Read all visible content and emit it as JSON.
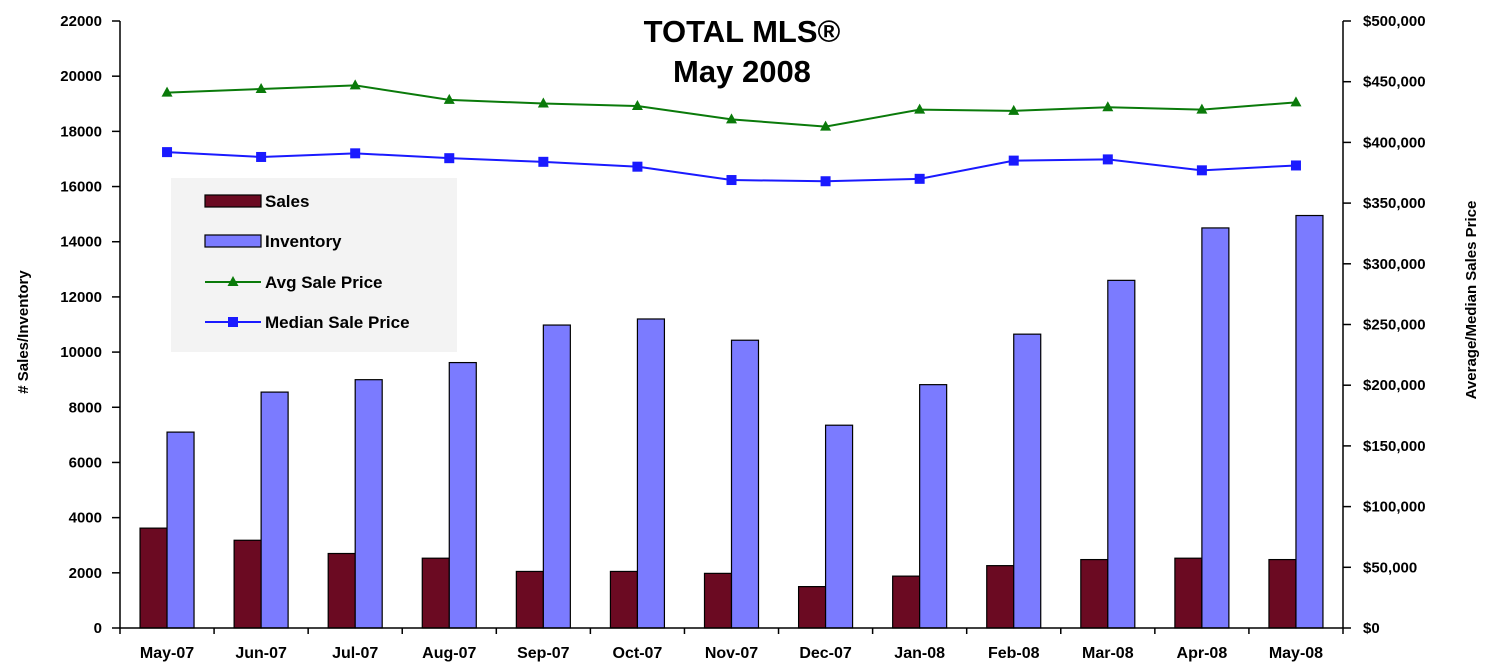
{
  "chart_data": {
    "type": "bar",
    "title": "TOTAL MLS®",
    "subtitle": "May 2008",
    "ylabel": "# Sales/Inventory",
    "y2label": "Average/Median Sales Price",
    "ylim": [
      0,
      22000
    ],
    "y2lim": [
      0,
      500000
    ],
    "yticks": [
      "0",
      "2000",
      "4000",
      "6000",
      "8000",
      "10000",
      "12000",
      "14000",
      "16000",
      "18000",
      "20000",
      "22000"
    ],
    "y2ticks": [
      "$0",
      "$50,000",
      "$100,000",
      "$150,000",
      "$200,000",
      "$250,000",
      "$300,000",
      "$350,000",
      "$400,000",
      "$450,000",
      "$500,000"
    ],
    "categories": [
      "May-07",
      "Jun-07",
      "Jul-07",
      "Aug-07",
      "Sep-07",
      "Oct-07",
      "Nov-07",
      "Dec-07",
      "Jan-08",
      "Feb-08",
      "Mar-08",
      "Apr-08",
      "May-08"
    ],
    "legend_position": "upper-left",
    "series": [
      {
        "name": "Sales",
        "kind": "bar",
        "axis": "left",
        "color": "#6b0a22",
        "values": [
          3620,
          3180,
          2700,
          2530,
          2050,
          2050,
          1980,
          1500,
          1880,
          2260,
          2480,
          2530,
          2480
        ]
      },
      {
        "name": "Inventory",
        "kind": "bar",
        "axis": "left",
        "color": "#7b7bff",
        "values": [
          7100,
          8550,
          9000,
          9620,
          10980,
          11200,
          10430,
          7350,
          8820,
          10650,
          12600,
          14500,
          14950
        ]
      },
      {
        "name": "Avg Sale Price",
        "kind": "line",
        "axis": "right",
        "color": "#0a7a0a",
        "marker": "triangle",
        "values": [
          441000,
          444000,
          447000,
          435000,
          432000,
          430000,
          419000,
          413000,
          427000,
          426000,
          429000,
          427000,
          433000
        ]
      },
      {
        "name": "Median Sale Price",
        "kind": "line",
        "axis": "right",
        "color": "#1a1aff",
        "marker": "square",
        "values": [
          392000,
          388000,
          391000,
          387000,
          384000,
          380000,
          369000,
          368000,
          370000,
          385000,
          386000,
          377000,
          381000
        ]
      }
    ]
  }
}
